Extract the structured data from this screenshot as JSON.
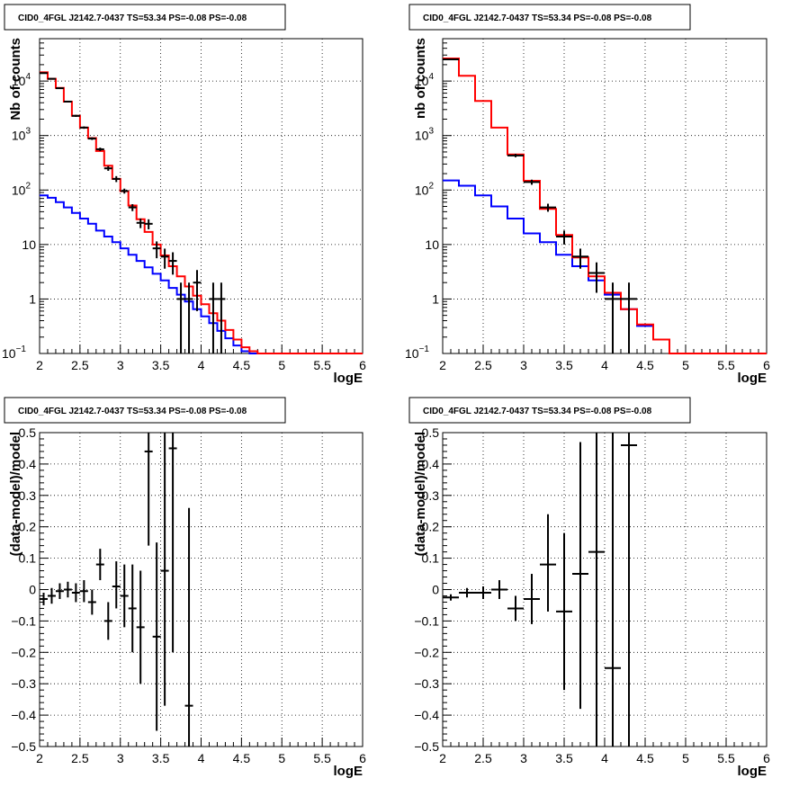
{
  "panels": [
    {
      "title": "CID0_4FGL J2142.7-0437 TS=53.34 PS=-0.08 PS=-0.08",
      "xlabel": "logE",
      "ylabel": "Nb of counts"
    },
    {
      "title": "CID0_4FGL J2142.7-0437 TS=53.34 PS=-0.08 PS=-0.08",
      "xlabel": "logE",
      "ylabel": "nb of counts"
    },
    {
      "title": "CID0_4FGL J2142.7-0437 TS=53.34 PS=-0.08 PS=-0.08",
      "xlabel": "logE",
      "ylabel": "(data-model)/model"
    },
    {
      "title": "CID0_4FGL J2142.7-0437 TS=53.34 PS=-0.08 PS=-0.08",
      "xlabel": "logE",
      "ylabel": "(data-model)/model"
    }
  ],
  "chart_data": [
    {
      "type": "histogram",
      "scale": "log-y",
      "xlim": [
        2,
        6
      ],
      "ylim": [
        0.1,
        60000
      ],
      "grid": true,
      "xticks": [
        "2",
        "2.5",
        "3",
        "3.5",
        "4",
        "4.5",
        "5",
        "5.5",
        "6"
      ],
      "yticks": [
        {
          "value": 0.1,
          "base": "10",
          "exp": "−1"
        },
        {
          "value": 1,
          "label": "1"
        },
        {
          "value": 10,
          "label": "10"
        },
        {
          "value": 100,
          "base": "10",
          "exp": "2"
        },
        {
          "value": 1000,
          "base": "10",
          "exp": "3"
        },
        {
          "value": 10000,
          "base": "10",
          "exp": "4"
        }
      ],
      "bin_edges": [
        2.0,
        2.1,
        2.2,
        2.3,
        2.4,
        2.5,
        2.6,
        2.7,
        2.8,
        2.9,
        3.0,
        3.1,
        3.2,
        3.3,
        3.4,
        3.5,
        3.6,
        3.7,
        3.8,
        3.9,
        4.0,
        4.1,
        4.2,
        4.3,
        4.4,
        4.5,
        4.6,
        4.7,
        4.8,
        4.9,
        5.0,
        5.1,
        5.2,
        5.3,
        5.4,
        5.5,
        5.6,
        5.7,
        5.8,
        5.9,
        6.0
      ],
      "series": [
        {
          "color": "#0000ff",
          "style": "step",
          "values": [
            80,
            72,
            60,
            48,
            38,
            30,
            24,
            18,
            14,
            11,
            8.5,
            6.5,
            5,
            3.8,
            2.9,
            2.2,
            1.6,
            1.2,
            0.9,
            0.65,
            0.48,
            0.36,
            0.26,
            0.19,
            0.14,
            0.11,
            0.1,
            0.1,
            0.1,
            0.1,
            0.1,
            0.1,
            0.1,
            0.1,
            0.1,
            0.1,
            0.1,
            0.1,
            0.1,
            0.1
          ]
        },
        {
          "color": "#ff0000",
          "style": "step",
          "values": [
            14500,
            11000,
            7500,
            4200,
            2300,
            1400,
            900,
            520,
            280,
            160,
            95,
            52,
            29,
            17,
            10,
            6.3,
            4,
            2.6,
            1.7,
            1.15,
            0.8,
            0.55,
            0.4,
            0.27,
            0.18,
            0.13,
            0.11,
            0.1,
            0.1,
            0.1,
            0.1,
            0.1,
            0.1,
            0.1,
            0.1,
            0.1,
            0.1,
            0.1,
            0.1,
            0.1
          ]
        },
        {
          "color": "#000000",
          "style": "points",
          "points": [
            {
              "x": 2.05,
              "y": 14000,
              "lo": 13700,
              "hi": 14300
            },
            {
              "x": 2.15,
              "y": 11000,
              "lo": 10700,
              "hi": 11300
            },
            {
              "x": 2.25,
              "y": 7400,
              "lo": 7200,
              "hi": 7600
            },
            {
              "x": 2.35,
              "y": 4200,
              "lo": 4080,
              "hi": 4320
            },
            {
              "x": 2.45,
              "y": 2300,
              "lo": 2200,
              "hi": 2400
            },
            {
              "x": 2.55,
              "y": 1400,
              "lo": 1330,
              "hi": 1470
            },
            {
              "x": 2.65,
              "y": 880,
              "lo": 830,
              "hi": 930
            },
            {
              "x": 2.75,
              "y": 560,
              "lo": 520,
              "hi": 600
            },
            {
              "x": 2.85,
              "y": 250,
              "lo": 225,
              "hi": 275
            },
            {
              "x": 2.95,
              "y": 160,
              "lo": 140,
              "hi": 180
            },
            {
              "x": 3.05,
              "y": 96,
              "lo": 86,
              "hi": 106
            },
            {
              "x": 3.15,
              "y": 48,
              "lo": 41,
              "hi": 55
            },
            {
              "x": 3.25,
              "y": 25,
              "lo": 20,
              "hi": 30
            },
            {
              "x": 3.35,
              "y": 24,
              "lo": 19,
              "hi": 29
            },
            {
              "x": 3.45,
              "y": 8.5,
              "lo": 5.6,
              "hi": 11.4
            },
            {
              "x": 3.55,
              "y": 6,
              "lo": 3.6,
              "hi": 8.4
            },
            {
              "x": 3.65,
              "y": 5,
              "lo": 2.8,
              "hi": 7.2
            },
            {
              "x": 3.75,
              "y": 1,
              "lo": 0.1,
              "hi": 2
            },
            {
              "x": 3.85,
              "y": 1,
              "lo": 0.1,
              "hi": 2
            },
            {
              "x": 3.95,
              "y": 2,
              "lo": 0.6,
              "hi": 3.4
            },
            {
              "x": 4.15,
              "y": 1,
              "lo": 0.1,
              "hi": 2
            },
            {
              "x": 4.25,
              "y": 1,
              "lo": 0.1,
              "hi": 2
            }
          ]
        }
      ]
    },
    {
      "type": "histogram",
      "scale": "log-y",
      "xlim": [
        2,
        6
      ],
      "ylim": [
        0.1,
        60000
      ],
      "grid": true,
      "xticks": [
        "2",
        "2.5",
        "3",
        "3.5",
        "4",
        "4.5",
        "5",
        "5.5",
        "6"
      ],
      "yticks": [
        {
          "value": 0.1,
          "base": "10",
          "exp": "−1"
        },
        {
          "value": 1,
          "label": "1"
        },
        {
          "value": 10,
          "label": "10"
        },
        {
          "value": 100,
          "base": "10",
          "exp": "2"
        },
        {
          "value": 1000,
          "base": "10",
          "exp": "3"
        },
        {
          "value": 10000,
          "base": "10",
          "exp": "4"
        }
      ],
      "bin_edges": [
        2.0,
        2.2,
        2.4,
        2.6,
        2.8,
        3.0,
        3.2,
        3.4,
        3.6,
        3.8,
        4.0,
        4.2,
        4.4,
        4.6,
        4.8,
        5.0,
        5.2,
        5.4,
        5.6,
        5.8,
        6.0
      ],
      "series": [
        {
          "color": "#0000ff",
          "style": "step",
          "values": [
            150,
            120,
            80,
            50,
            30,
            16,
            11,
            6.5,
            4,
            2.2,
            1.2,
            0.65,
            0.32,
            0.18,
            0.1,
            0.1,
            0.1,
            0.1,
            0.1,
            0.1
          ]
        },
        {
          "color": "#ff0000",
          "style": "step",
          "values": [
            26000,
            12500,
            4300,
            1400,
            450,
            148,
            45,
            15,
            5.8,
            2.6,
            1.3,
            0.65,
            0.34,
            0.18,
            0.1,
            0.1,
            0.1,
            0.1,
            0.1,
            0.1
          ]
        },
        {
          "color": "#000000",
          "style": "points",
          "points": [
            {
              "x": 2.1,
              "y": 25000,
              "lo": 24500,
              "hi": 25500
            },
            {
              "x": 2.9,
              "y": 430,
              "lo": 400,
              "hi": 460
            },
            {
              "x": 3.1,
              "y": 140,
              "lo": 125,
              "hi": 155
            },
            {
              "x": 3.3,
              "y": 48,
              "lo": 40,
              "hi": 56
            },
            {
              "x": 3.5,
              "y": 14,
              "lo": 10,
              "hi": 18
            },
            {
              "x": 3.7,
              "y": 6,
              "lo": 3.6,
              "hi": 8.4
            },
            {
              "x": 3.9,
              "y": 3,
              "lo": 1.3,
              "hi": 4.7
            },
            {
              "x": 4.1,
              "y": 1,
              "lo": 0.1,
              "hi": 2
            },
            {
              "x": 4.3,
              "y": 1,
              "lo": 0.1,
              "hi": 2
            }
          ]
        }
      ]
    },
    {
      "type": "scatter",
      "xlim": [
        2,
        6
      ],
      "ylim": [
        -0.5,
        0.5
      ],
      "grid": true,
      "xticks": [
        "2",
        "2.5",
        "3",
        "3.5",
        "4",
        "4.5",
        "5",
        "5.5",
        "6"
      ],
      "yticks": [
        "−0.5",
        "−0.4",
        "−0.3",
        "−0.2",
        "−0.1",
        "0",
        "0.1",
        "0.2",
        "0.3",
        "0.4",
        "0.5"
      ],
      "xerr": 0.05,
      "points": [
        {
          "x": 2.05,
          "y": -0.03,
          "lo": -0.05,
          "hi": -0.01
        },
        {
          "x": 2.15,
          "y": -0.02,
          "lo": -0.045,
          "hi": 0.005
        },
        {
          "x": 2.25,
          "y": -0.005,
          "lo": -0.03,
          "hi": 0.02
        },
        {
          "x": 2.35,
          "y": 0.0,
          "lo": -0.025,
          "hi": 0.025
        },
        {
          "x": 2.45,
          "y": -0.01,
          "lo": -0.04,
          "hi": 0.02
        },
        {
          "x": 2.55,
          "y": -0.005,
          "lo": -0.04,
          "hi": 0.03
        },
        {
          "x": 2.65,
          "y": -0.04,
          "lo": -0.08,
          "hi": 0.0
        },
        {
          "x": 2.75,
          "y": 0.08,
          "lo": 0.03,
          "hi": 0.13
        },
        {
          "x": 2.85,
          "y": -0.1,
          "lo": -0.16,
          "hi": -0.04
        },
        {
          "x": 2.95,
          "y": 0.01,
          "lo": -0.06,
          "hi": 0.09
        },
        {
          "x": 3.05,
          "y": -0.02,
          "lo": -0.12,
          "hi": 0.08
        },
        {
          "x": 3.15,
          "y": -0.06,
          "lo": -0.2,
          "hi": 0.08
        },
        {
          "x": 3.25,
          "y": -0.12,
          "lo": -0.3,
          "hi": 0.06
        },
        {
          "x": 3.35,
          "y": 0.44,
          "lo": 0.14,
          "hi": 0.5
        },
        {
          "x": 3.45,
          "y": -0.15,
          "lo": -0.45,
          "hi": 0.15
        },
        {
          "x": 3.55,
          "y": 0.06,
          "lo": -0.37,
          "hi": 0.5
        },
        {
          "x": 3.65,
          "y": 0.45,
          "lo": -0.2,
          "hi": 0.5
        },
        {
          "x": 3.85,
          "y": -0.37,
          "lo": -0.5,
          "hi": 0.26
        }
      ]
    },
    {
      "type": "scatter",
      "xlim": [
        2,
        6
      ],
      "ylim": [
        -0.5,
        0.5
      ],
      "grid": true,
      "xticks": [
        "2",
        "2.5",
        "3",
        "3.5",
        "4",
        "4.5",
        "5",
        "5.5",
        "6"
      ],
      "yticks": [
        "−0.5",
        "−0.4",
        "−0.3",
        "−0.2",
        "−0.1",
        "0",
        "0.1",
        "0.2",
        "0.3",
        "0.4",
        "0.5"
      ],
      "xerr": 0.1,
      "points": [
        {
          "x": 2.1,
          "y": -0.025,
          "lo": -0.035,
          "hi": -0.015
        },
        {
          "x": 2.3,
          "y": -0.01,
          "lo": -0.025,
          "hi": 0.005
        },
        {
          "x": 2.5,
          "y": -0.01,
          "lo": -0.03,
          "hi": 0.01
        },
        {
          "x": 2.7,
          "y": 0.0,
          "lo": -0.03,
          "hi": 0.03
        },
        {
          "x": 2.9,
          "y": -0.06,
          "lo": -0.1,
          "hi": -0.02
        },
        {
          "x": 3.1,
          "y": -0.03,
          "lo": -0.11,
          "hi": 0.05
        },
        {
          "x": 3.3,
          "y": 0.08,
          "lo": -0.07,
          "hi": 0.24
        },
        {
          "x": 3.5,
          "y": -0.07,
          "lo": -0.32,
          "hi": 0.18
        },
        {
          "x": 3.7,
          "y": 0.05,
          "lo": -0.38,
          "hi": 0.47
        },
        {
          "x": 3.9,
          "y": 0.12,
          "lo": -0.5,
          "hi": 0.5
        },
        {
          "x": 4.1,
          "y": -0.25,
          "lo": -0.5,
          "hi": 0.5
        },
        {
          "x": 4.3,
          "y": 0.46,
          "lo": -0.5,
          "hi": 0.5
        }
      ]
    }
  ]
}
